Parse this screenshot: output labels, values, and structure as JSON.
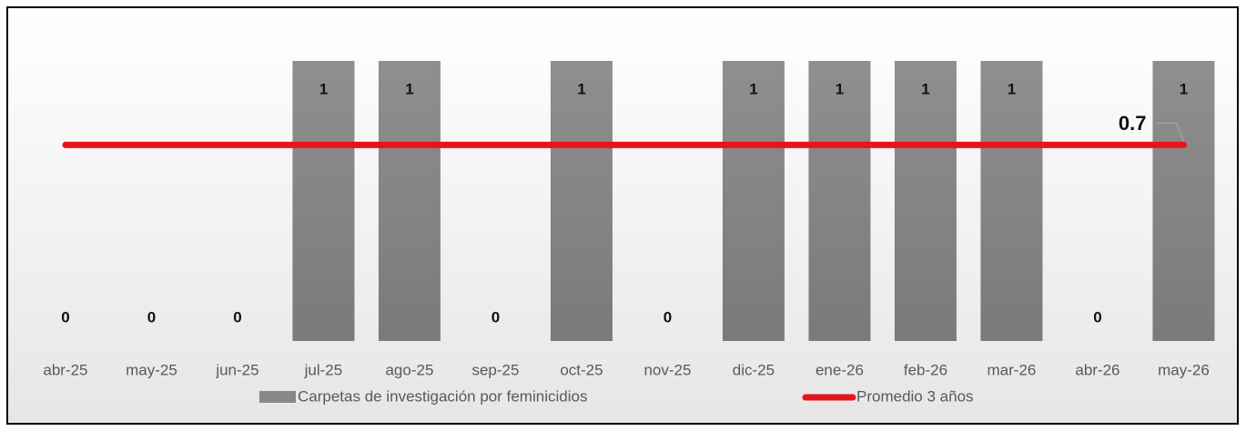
{
  "chart_data": {
    "type": "bar",
    "categories": [
      "abr-25",
      "may-25",
      "jun-25",
      "jul-25",
      "ago-25",
      "sep-25",
      "oct-25",
      "nov-25",
      "dic-25",
      "ene-26",
      "feb-26",
      "mar-26",
      "abr-26",
      "may-26"
    ],
    "series": [
      {
        "name": "Carpetas de investigación por feminicidios",
        "type": "bar",
        "color": "#888888",
        "values": [
          0,
          0,
          0,
          1,
          1,
          0,
          1,
          0,
          1,
          1,
          1,
          1,
          0,
          1
        ]
      },
      {
        "name": "Promedio 3 años",
        "type": "line",
        "color": "#e8141b",
        "values": [
          0.7,
          0.7,
          0.7,
          0.7,
          0.7,
          0.7,
          0.7,
          0.7,
          0.7,
          0.7,
          0.7,
          0.7,
          0.7,
          0.7
        ]
      }
    ],
    "ylim": [
      0,
      1
    ],
    "legend": "bottom"
  }
}
